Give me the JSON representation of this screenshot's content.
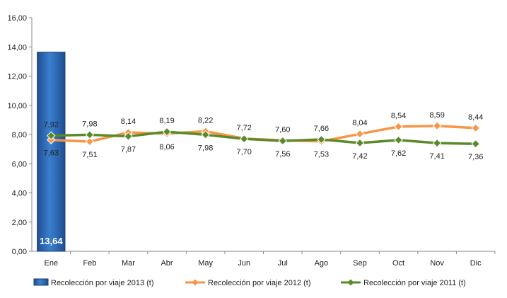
{
  "chart_data": {
    "type": "bar+line",
    "categories": [
      "Ene",
      "Feb",
      "Mar",
      "Abr",
      "May",
      "Jun",
      "Jul",
      "Ago",
      "Sep",
      "Oct",
      "Nov",
      "Dic"
    ],
    "y_ticks": [
      "0,00",
      "2,00",
      "4,00",
      "6,00",
      "8,00",
      "10,00",
      "12,00",
      "14,00",
      "16,00"
    ],
    "ylim": [
      0,
      16
    ],
    "grid": false,
    "legend_position": "bottom",
    "series": [
      {
        "name": "Recolección por viaje 2013 (t)",
        "kind": "bar",
        "color": "#2e6db4",
        "values": [
          13.64,
          null,
          null,
          null,
          null,
          null,
          null,
          null,
          null,
          null,
          null,
          null
        ],
        "labels": [
          "13,64",
          "",
          "",
          "",
          "",
          "",
          "",
          "",
          "",
          "",
          "",
          ""
        ]
      },
      {
        "name": "Recolección por viaje 2012 (t)",
        "kind": "line",
        "color": "#f79646",
        "values": [
          7.63,
          7.51,
          8.14,
          8.06,
          8.22,
          7.72,
          7.6,
          7.53,
          8.04,
          8.54,
          8.59,
          8.44
        ],
        "labels": [
          "7,63",
          "7,51",
          "8,14",
          "8,06",
          "8,22",
          "7,72",
          "7,60",
          "7,53",
          "8,04",
          "8,54",
          "8,59",
          "8,44"
        ]
      },
      {
        "name": "Recolección por viaje 2011 (t)",
        "kind": "line",
        "color": "#5a8a2a",
        "values": [
          7.92,
          7.98,
          7.87,
          8.19,
          7.98,
          7.7,
          7.56,
          7.66,
          7.42,
          7.62,
          7.41,
          7.36
        ],
        "labels": [
          "7,92",
          "7,98",
          "7,87",
          "8,19",
          "7,98",
          "7,70",
          "7,56",
          "7,66",
          "7,42",
          "7,62",
          "7,41",
          "7,36"
        ]
      }
    ]
  }
}
